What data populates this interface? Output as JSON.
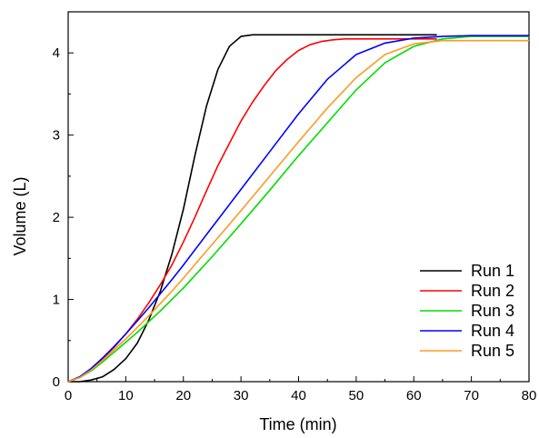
{
  "chart_data": {
    "type": "line",
    "title": "",
    "xlabel": "Time (min)",
    "ylabel": "Volume (L)",
    "xlim": [
      0,
      80
    ],
    "ylim": [
      0,
      4.5
    ],
    "xticks": [
      "0",
      "10",
      "20",
      "30",
      "40",
      "50",
      "60",
      "70",
      "80"
    ],
    "yticks": [
      "0",
      "1",
      "2",
      "3",
      "4"
    ],
    "grid": false,
    "legend_position": "bottom-right",
    "series": [
      {
        "name": "Run 1",
        "color": "#000000",
        "x": [
          0,
          2,
          4,
          6,
          8,
          10,
          12,
          14,
          16,
          18,
          20,
          22,
          24,
          26,
          28,
          30,
          32,
          34,
          36,
          40,
          50,
          60,
          64
        ],
        "y": [
          0,
          0.0,
          0.02,
          0.06,
          0.15,
          0.28,
          0.47,
          0.75,
          1.1,
          1.55,
          2.1,
          2.75,
          3.35,
          3.8,
          4.08,
          4.2,
          4.22,
          4.22,
          4.22,
          4.22,
          4.22,
          4.22,
          4.22
        ]
      },
      {
        "name": "Run 2",
        "color": "#ff0000",
        "x": [
          0,
          2,
          4,
          6,
          8,
          10,
          12,
          14,
          16,
          18,
          20,
          22,
          24,
          26,
          28,
          30,
          32,
          34,
          36,
          38,
          40,
          42,
          44,
          46,
          48,
          50,
          55,
          60,
          64
        ],
        "y": [
          0,
          0.05,
          0.15,
          0.28,
          0.42,
          0.58,
          0.76,
          0.96,
          1.18,
          1.42,
          1.7,
          2.0,
          2.32,
          2.63,
          2.9,
          3.17,
          3.4,
          3.6,
          3.78,
          3.92,
          4.03,
          4.1,
          4.14,
          4.16,
          4.17,
          4.17,
          4.17,
          4.17,
          4.17
        ]
      },
      {
        "name": "Run 3",
        "color": "#00dd00",
        "x": [
          0,
          2,
          4,
          6,
          8,
          10,
          12,
          14,
          16,
          18,
          20,
          25,
          30,
          35,
          40,
          45,
          50,
          55,
          60,
          65,
          70,
          75,
          80
        ],
        "y": [
          0,
          0.05,
          0.13,
          0.24,
          0.36,
          0.48,
          0.6,
          0.73,
          0.86,
          1.0,
          1.14,
          1.52,
          1.92,
          2.33,
          2.75,
          3.15,
          3.55,
          3.88,
          4.08,
          4.17,
          4.2,
          4.2,
          4.2
        ]
      },
      {
        "name": "Run 4",
        "color": "#0000ff",
        "x": [
          0,
          2,
          4,
          6,
          8,
          10,
          12,
          14,
          16,
          18,
          20,
          25,
          30,
          35,
          40,
          45,
          50,
          55,
          60,
          65,
          70,
          75,
          80
        ],
        "y": [
          0,
          0.06,
          0.16,
          0.29,
          0.43,
          0.58,
          0.74,
          0.9,
          1.07,
          1.24,
          1.42,
          1.88,
          2.34,
          2.8,
          3.26,
          3.68,
          3.98,
          4.12,
          4.18,
          4.2,
          4.21,
          4.21,
          4.21
        ]
      },
      {
        "name": "Run 5",
        "color": "#ff9922",
        "x": [
          0,
          2,
          4,
          6,
          8,
          10,
          12,
          14,
          16,
          18,
          20,
          25,
          30,
          35,
          40,
          45,
          50,
          55,
          60,
          65,
          70,
          75,
          80
        ],
        "y": [
          0,
          0.05,
          0.14,
          0.26,
          0.39,
          0.52,
          0.66,
          0.8,
          0.95,
          1.1,
          1.26,
          1.67,
          2.08,
          2.5,
          2.92,
          3.33,
          3.7,
          3.98,
          4.11,
          4.15,
          4.15,
          4.15,
          4.15
        ]
      }
    ]
  }
}
